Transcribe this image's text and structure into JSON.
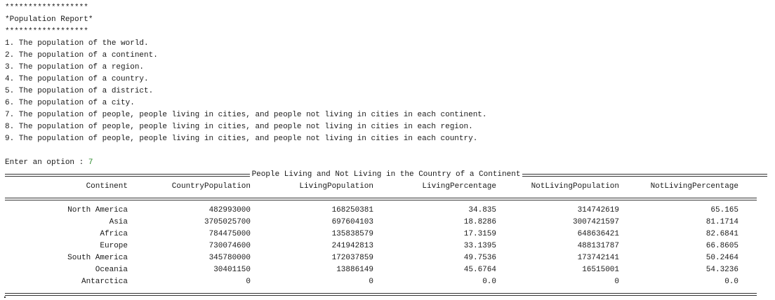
{
  "menu": {
    "stars_top": "******************",
    "title": "*Population Report*",
    "stars_bottom": "******************",
    "options": [
      "1. The population of the world.",
      "2. The population of a continent.",
      "3. The population of a region.",
      "4. The population of a country.",
      "5. The population of a district.",
      "6. The population of a city.",
      "7. The population of people, people living in cities, and people not living in cities in each continent.",
      "8. The population of people, people living in cities, and people not living in cities in each region.",
      "9. The population of people, people living in cities, and people not living in cities in each country."
    ],
    "prompt": "Enter an option : ",
    "input_value": "7"
  },
  "report": {
    "banner": "People Living and Not Living in the Country of a Continent",
    "columns": [
      "Continent",
      "CountryPopulation",
      "LivingPopulation",
      "LivingPercentage",
      "NotLivingPopulation",
      "NotLivingPercentage"
    ],
    "rows": [
      [
        "North America",
        "482993000",
        "168250381",
        "34.835",
        "314742619",
        "65.165"
      ],
      [
        "Asia",
        "3705025700",
        "697604103",
        "18.8286",
        "3007421597",
        "81.1714"
      ],
      [
        "Africa",
        "784475000",
        "135838579",
        "17.3159",
        "648636421",
        "82.6841"
      ],
      [
        "Europe",
        "730074600",
        "241942813",
        "33.1395",
        "488131787",
        "66.8605"
      ],
      [
        "South America",
        "345780000",
        "172037859",
        "49.7536",
        "173742141",
        "50.2464"
      ],
      [
        "Oceania",
        "30401150",
        "13886149",
        "45.6764",
        "16515001",
        "54.3236"
      ],
      [
        "Antarctica",
        "0",
        "0",
        "0.0",
        "0",
        "0.0"
      ]
    ]
  }
}
